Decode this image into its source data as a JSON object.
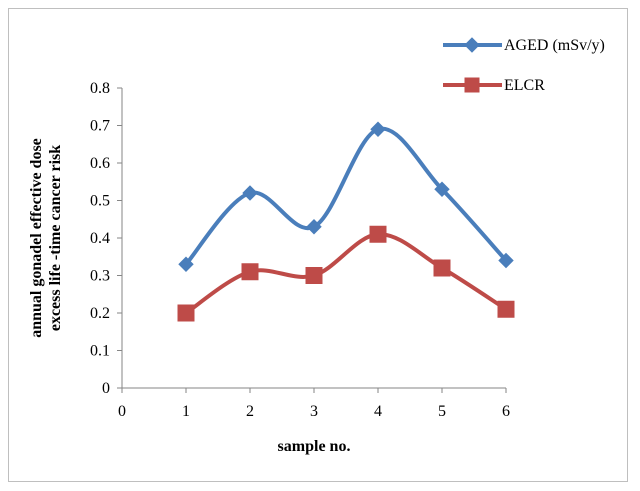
{
  "chart_data": {
    "type": "line",
    "smooth": true,
    "x_ticks": [
      "0",
      "1",
      "2",
      "3",
      "4",
      "5",
      "6"
    ],
    "y_ticks": [
      "0",
      "0.1",
      "0.2",
      "0.3",
      "0.4",
      "0.5",
      "0.6",
      "0.7",
      "0.8"
    ],
    "xlim": [
      0,
      6
    ],
    "ylim": [
      0,
      0.8
    ],
    "xlabel": "sample no.",
    "ylabel_line1": "annual gonadel effective dose",
    "ylabel_line2": "excess life -time cancer risk",
    "grid": false,
    "legend_position": "top-right",
    "series": [
      {
        "name": "AGED (mSv/y)",
        "color": "#4a7ebb",
        "marker": "diamond",
        "x": [
          1,
          2,
          3,
          4,
          5,
          6
        ],
        "values": [
          0.33,
          0.52,
          0.43,
          0.69,
          0.53,
          0.34
        ]
      },
      {
        "name": "ELCR",
        "color": "#be4b48",
        "marker": "square",
        "x": [
          1,
          2,
          3,
          4,
          5,
          6
        ],
        "values": [
          0.2,
          0.31,
          0.3,
          0.41,
          0.32,
          0.21
        ]
      }
    ]
  }
}
